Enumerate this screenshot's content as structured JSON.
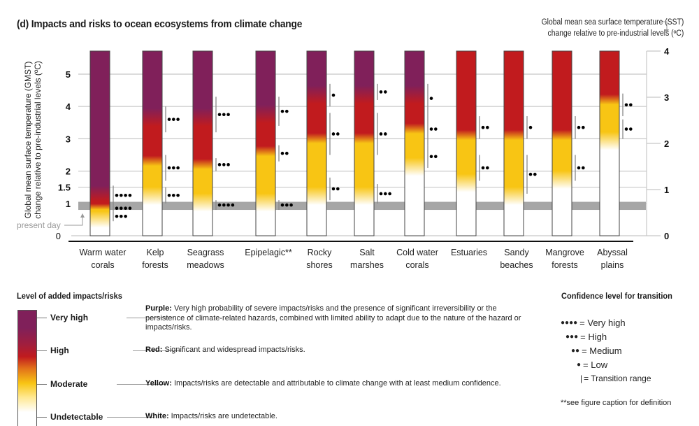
{
  "chart_data": {
    "type": "heatmap",
    "title": "(d) Impacts and risks to ocean ecosystems from climate change",
    "ylabel_left": "Global mean surface temperature (GMST) change relative to pre-industrial levels (ºC)",
    "ylabel_right": "Global mean sea surface temperature (SST) change relative to pre-industrial levels (ºC)",
    "y_left_ticks": [
      "0",
      "1",
      "1.5",
      "2",
      "3",
      "4",
      "5"
    ],
    "y_left_tick_values": [
      0,
      1,
      1.5,
      2,
      3,
      4,
      5
    ],
    "y_right_ticks": [
      "0",
      "1",
      "2",
      "3",
      "4"
    ],
    "y_right_tick_values": [
      0,
      1,
      2,
      3,
      4
    ],
    "ylim_left": [
      0,
      5.5
    ],
    "present_day_label": "present day",
    "present_day_band": [
      0.8,
      1.05
    ],
    "grid": true,
    "categories": [
      "Warm water corals",
      "Kelp forests",
      "Seagrass meadows",
      "Epipelagic**",
      "Rocky shores",
      "Salt marshes",
      "Cold water corals",
      "Estuaries",
      "Sandy beaches",
      "Mangrove forests",
      "Abyssal plains"
    ],
    "category_lines": [
      [
        "Warm water",
        "corals"
      ],
      [
        "Kelp",
        "forests"
      ],
      [
        "Seagrass",
        "meadows"
      ],
      [
        "Epipelagic**"
      ],
      [
        "Rocky",
        "shores"
      ],
      [
        "Salt",
        "marshes"
      ],
      [
        "Cold water",
        "corals"
      ],
      [
        "Estuaries"
      ],
      [
        "Sandy",
        "beaches"
      ],
      [
        "Mangrove",
        "forests"
      ],
      [
        "Abyssal",
        "plains"
      ]
    ],
    "series": [
      {
        "name": "Warm water corals",
        "undetectable_to_moderate": 0.6,
        "moderate_to_high": 0.9,
        "high_to_very_high": 1.2,
        "transitions": [
          {
            "from": 0.45,
            "to": 0.75,
            "confidence": 3
          },
          {
            "from": 0.75,
            "to": 0.95,
            "confidence": 4
          },
          {
            "from": 0.95,
            "to": 1.55,
            "confidence": 4
          }
        ]
      },
      {
        "name": "Kelp forests",
        "undetectable_to_moderate": 1.3,
        "moderate_to_high": 2.3,
        "high_to_very_high": 3.6,
        "transitions": [
          {
            "from": 1.0,
            "to": 1.5,
            "confidence": 3
          },
          {
            "from": 1.7,
            "to": 2.5,
            "confidence": 3
          },
          {
            "from": 3.2,
            "to": 4.0,
            "confidence": 3
          }
        ]
      },
      {
        "name": "Seagrass meadows",
        "undetectable_to_moderate": 1.1,
        "moderate_to_high": 2.2,
        "high_to_very_high": 3.6,
        "transitions": [
          {
            "from": 0.8,
            "to": 1.1,
            "confidence": 4
          },
          {
            "from": 2.0,
            "to": 2.4,
            "confidence": 3
          },
          {
            "from": 3.2,
            "to": 4.3,
            "confidence": 3
          }
        ]
      },
      {
        "name": "Epipelagic**",
        "undetectable_to_moderate": 1.1,
        "moderate_to_high": 2.6,
        "high_to_very_high": 3.7,
        "transitions": [
          {
            "from": 0.8,
            "to": 1.1,
            "confidence": 3
          },
          {
            "from": 2.3,
            "to": 2.8,
            "confidence": 2
          },
          {
            "from": 3.4,
            "to": 4.3,
            "confidence": 2
          }
        ]
      },
      {
        "name": "Rocky shores",
        "undetectable_to_moderate": 1.3,
        "moderate_to_high": 3.0,
        "high_to_very_high": 4.3,
        "transitions": [
          {
            "from": 1.1,
            "to": 1.8,
            "confidence": 2
          },
          {
            "from": 2.5,
            "to": 3.8,
            "confidence": 2
          },
          {
            "from": 4.0,
            "to": 4.7,
            "confidence": 1
          }
        ]
      },
      {
        "name": "Salt marshes",
        "undetectable_to_moderate": 1.3,
        "moderate_to_high": 3.0,
        "high_to_very_high": 4.3,
        "transitions": [
          {
            "from": 1.0,
            "to": 1.6,
            "confidence": 3
          },
          {
            "from": 2.5,
            "to": 3.8,
            "confidence": 2
          },
          {
            "from": 4.2,
            "to": 4.7,
            "confidence": 2
          }
        ]
      },
      {
        "name": "Cold water corals",
        "undetectable_to_moderate": 2.2,
        "moderate_to_high": 3.3,
        "high_to_very_high": 4.3,
        "transitions": [
          {
            "from": 2.1,
            "to": 2.8,
            "confidence": 2
          },
          {
            "from": 2.8,
            "to": 3.8,
            "confidence": 2
          },
          {
            "from": 3.8,
            "to": 4.7,
            "confidence": 1
          }
        ]
      },
      {
        "name": "Estuaries",
        "undetectable_to_moderate": 1.7,
        "moderate_to_high": 3.1,
        "high_to_very_high": null,
        "transitions": [
          {
            "from": 1.7,
            "to": 2.5,
            "confidence": 2
          },
          {
            "from": 3.0,
            "to": 3.7,
            "confidence": 2
          }
        ]
      },
      {
        "name": "Sandy beaches",
        "undetectable_to_moderate": 1.3,
        "moderate_to_high": 3.1,
        "high_to_very_high": null,
        "transitions": [
          {
            "from": 1.3,
            "to": 2.5,
            "confidence": 2
          },
          {
            "from": 3.0,
            "to": 3.7,
            "confidence": 1
          }
        ]
      },
      {
        "name": "Mangrove forests",
        "undetectable_to_moderate": 1.8,
        "moderate_to_high": 3.1,
        "high_to_very_high": null,
        "transitions": [
          {
            "from": 1.7,
            "to": 2.5,
            "confidence": 2
          },
          {
            "from": 3.0,
            "to": 3.7,
            "confidence": 2
          }
        ]
      },
      {
        "name": "Abyssal plains",
        "undetectable_to_moderate": 3.0,
        "moderate_to_high": 4.2,
        "high_to_very_high": null,
        "transitions": [
          {
            "from": 3.0,
            "to": 3.6,
            "confidence": 2
          },
          {
            "from": 3.7,
            "to": 4.4,
            "confidence": 2
          }
        ]
      }
    ]
  },
  "colors": {
    "very_high": "#80205a",
    "high": "#c11b1e",
    "moderate": "#f8c514",
    "undetectable": "#ffffff",
    "present_day_band": "#a6a6a6",
    "grid": "#c8c8c8"
  },
  "legend": {
    "title": "Level of added impacts/risks",
    "levels": [
      {
        "label": "Very high",
        "color_name": "Purple:",
        "description": "Very high probability of severe impacts/risks and the presence of significant irreversibility or the persistence of climate-related hazards, combined with limited ability to adapt due to the nature of the hazard or impacts/risks."
      },
      {
        "label": "High",
        "color_name": "Red:",
        "description": "Significant and widespread impacts/risks."
      },
      {
        "label": "Moderate",
        "color_name": "Yellow:",
        "description": "Impacts/risks are detectable and attributable to climate change with at least medium confidence."
      },
      {
        "label": "Undetectable",
        "color_name": "White:",
        "description": "Impacts/risks are undetectable."
      }
    ]
  },
  "confidence_legend": {
    "title": "Confidence level for transition",
    "items": [
      {
        "dots": "●●●●",
        "label": "= Very high"
      },
      {
        "dots": "●●●",
        "label": "= High"
      },
      {
        "dots": "●●",
        "label": "= Medium"
      },
      {
        "dots": "●",
        "label": "= Low"
      },
      {
        "dots": "|",
        "label": "= Transition range"
      }
    ],
    "footnote": "**see figure caption for definition"
  }
}
